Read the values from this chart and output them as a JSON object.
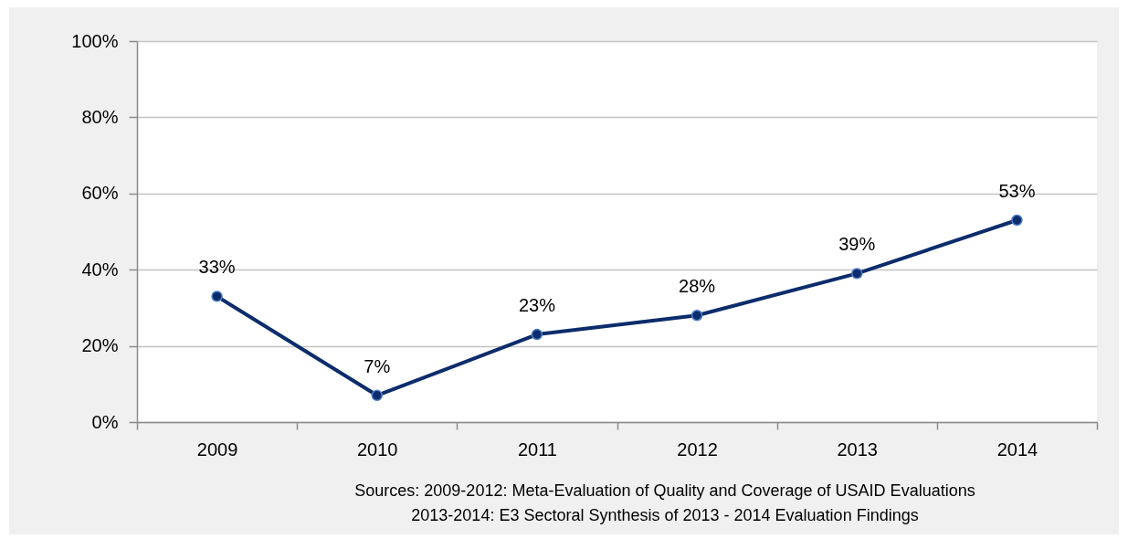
{
  "chart_data": {
    "type": "line",
    "categories": [
      "2009",
      "2010",
      "2011",
      "2012",
      "2013",
      "2014"
    ],
    "values": [
      33,
      7,
      23,
      28,
      39,
      53
    ],
    "value_labels": [
      "33%",
      "7%",
      "23%",
      "28%",
      "39%",
      "53%"
    ],
    "color": "#0c2c6c",
    "ylim": [
      0,
      100
    ],
    "yticks": [
      {
        "value": 0,
        "label": "0%"
      },
      {
        "value": 20,
        "label": "20%"
      },
      {
        "value": 40,
        "label": "40%"
      },
      {
        "value": 60,
        "label": "60%"
      },
      {
        "value": 80,
        "label": "80%"
      },
      {
        "value": 100,
        "label": "100%"
      }
    ],
    "grid": "y",
    "marker": "circle",
    "line_style": "solid",
    "annotations": [
      "Sources: 2009-2012: Meta-Evaluation of Quality and Coverage of USAID Evaluations",
      "2013-2014: E3 Sectoral Synthesis of 2013 - 2014 Evaluation Findings"
    ]
  }
}
